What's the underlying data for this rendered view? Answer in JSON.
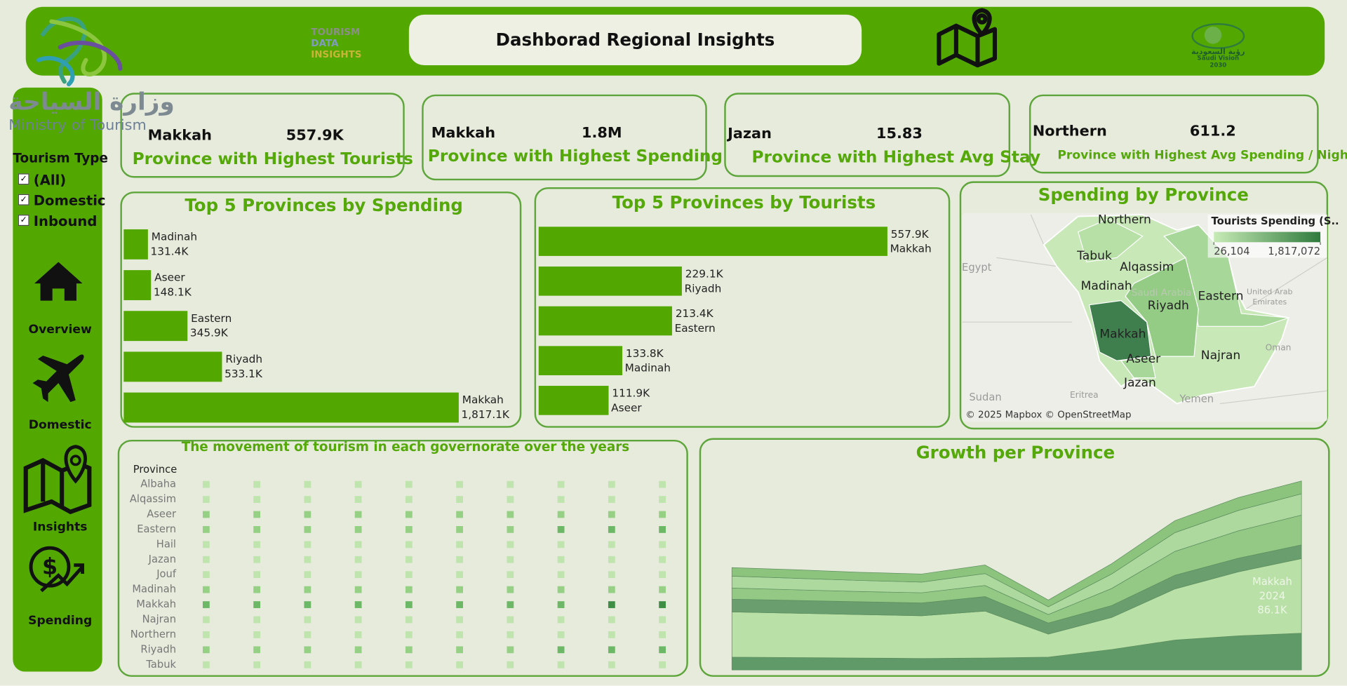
{
  "header": {
    "title": "Dashborad Regional Insights",
    "brand": [
      "TOURISM",
      "DATA",
      "INSIGHTS"
    ],
    "ministry_ar": "وزارة السياحة",
    "ministry_en": "Ministry of Tourism",
    "vision": [
      "رؤية السعودية",
      "Saudi Vision",
      "2030"
    ]
  },
  "sidebar": {
    "filter_title": "Tourism Type",
    "options": [
      "(All)",
      "Domestic",
      "Inbound"
    ],
    "nav": [
      "Overview",
      "Domestic",
      "Insights",
      "Spending"
    ]
  },
  "kpis": [
    {
      "name": "Makkah",
      "value": "557.9K",
      "label": "Province with Highest Tourists"
    },
    {
      "name": "Makkah",
      "value": "1.8M",
      "label": "Province with Highest Spending"
    },
    {
      "name": "Jazan",
      "value": "15.83",
      "label": "Province with Highest Avg Stay"
    },
    {
      "name": "Northern",
      "value": "611.2",
      "label": "Province with Highest Avg Spending / Night"
    }
  ],
  "spending_chart": {
    "type": "bar",
    "title": "Top 5 Provinces by Spending",
    "color": "#53a800",
    "categories": [
      "Madinah",
      "Aseer",
      "Eastern",
      "Riyadh",
      "Makkah"
    ],
    "values": [
      131.4,
      148.1,
      345.9,
      533.1,
      1817.1
    ],
    "value_labels": [
      "131.4K",
      "148.1K",
      "345.9K",
      "533.1K",
      "1,817.1K"
    ]
  },
  "tourists_chart": {
    "type": "bar",
    "title": "Top 5 Provinces by Tourists",
    "color": "#53a800",
    "categories": [
      "Makkah",
      "Riyadh",
      "Eastern",
      "Madinah",
      "Aseer"
    ],
    "values": [
      557.9,
      229.1,
      213.4,
      133.8,
      111.9
    ],
    "value_labels": [
      "557.9K",
      "229.1K",
      "213.4K",
      "133.8K",
      "111.9K"
    ]
  },
  "map": {
    "type": "map",
    "title": "Spending by Province",
    "legend_title": "Tourists Spending (S..",
    "legend_range": [
      {
        "value": 26104,
        "label": "26,104"
      },
      {
        "value": 1817072,
        "label": "1,817,072"
      }
    ],
    "regions": [
      "Northern",
      "Tabuk",
      "Alqassim",
      "Madinah",
      "Riyadh",
      "Eastern",
      "Makkah",
      "Najran",
      "Aseer",
      "Jazan"
    ],
    "countries": [
      "Egypt",
      "Sudan",
      "Eritrea",
      "Yemen",
      "Oman",
      "United Arab",
      "Emirates",
      "Saudi Arabia"
    ],
    "attribution": "© 2025 Mapbox © OpenStreetMap"
  },
  "heatmap": {
    "type": "heatmap",
    "title": "The movement of tourism in each governorate over the years",
    "row_header": "Province",
    "rows": [
      "Albaha",
      "Alqassim",
      "Aseer",
      "Eastern",
      "Hail",
      "Jazan",
      "Jouf",
      "Madinah",
      "Makkah",
      "Najran",
      "Northern",
      "Riyadh",
      "Tabuk"
    ],
    "levels": [
      [
        1,
        1,
        1,
        1,
        1,
        1,
        1,
        1,
        1,
        1
      ],
      [
        1,
        1,
        1,
        1,
        1,
        1,
        1,
        1,
        1,
        1
      ],
      [
        2,
        2,
        2,
        2,
        2,
        2,
        2,
        2,
        2,
        2
      ],
      [
        2,
        2,
        2,
        2,
        2,
        2,
        2,
        3,
        3,
        3
      ],
      [
        1,
        1,
        1,
        1,
        1,
        1,
        1,
        1,
        1,
        1
      ],
      [
        1,
        1,
        1,
        1,
        1,
        1,
        1,
        1,
        1,
        1
      ],
      [
        1,
        1,
        1,
        1,
        1,
        1,
        1,
        1,
        1,
        1
      ],
      [
        2,
        2,
        2,
        2,
        2,
        2,
        2,
        2,
        2,
        2
      ],
      [
        3,
        3,
        3,
        3,
        3,
        3,
        3,
        3,
        4,
        4
      ],
      [
        1,
        1,
        1,
        1,
        1,
        1,
        1,
        1,
        1,
        1
      ],
      [
        1,
        1,
        1,
        1,
        1,
        1,
        1,
        1,
        1,
        1
      ],
      [
        2,
        2,
        2,
        2,
        2,
        2,
        2,
        3,
        3,
        3
      ],
      [
        1,
        1,
        1,
        1,
        1,
        1,
        1,
        1,
        1,
        1
      ]
    ]
  },
  "growth_chart": {
    "type": "stacked-area",
    "title": "Growth per Province",
    "annotation": {
      "name": "Makkah",
      "year": "2024",
      "value": "86.1K"
    },
    "series": [
      {
        "color": "#5f9a68",
        "values": [
          30,
          29,
          28,
          27,
          28,
          30,
          48,
          70,
          80,
          86.1
        ]
      },
      {
        "color": "#b9e0a6",
        "values": [
          106,
          104,
          102,
          100,
          110,
          54,
          75,
          120,
          150,
          175
        ]
      },
      {
        "color": "#6a9e6f",
        "values": [
          30,
          30,
          30,
          30,
          34,
          26,
          28,
          32,
          32,
          32
        ]
      },
      {
        "color": "#93c985",
        "values": [
          26,
          25,
          24,
          24,
          26,
          20,
          40,
          56,
          64,
          70
        ]
      },
      {
        "color": "#add99f",
        "values": [
          28,
          27,
          26,
          25,
          28,
          18,
          34,
          44,
          48,
          50
        ]
      },
      {
        "color": "#8cc47d",
        "values": [
          20,
          20,
          19,
          19,
          20,
          16,
          24,
          28,
          30,
          30
        ]
      }
    ]
  }
}
